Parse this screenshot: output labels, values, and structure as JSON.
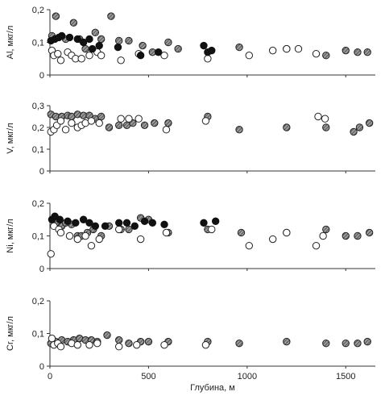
{
  "figure": {
    "x_axis_label": "Глубина, м",
    "x_ticks": [
      0,
      500,
      1000,
      1500
    ],
    "x_range": [
      0,
      1650
    ]
  },
  "legend_styles": {
    "filled": "#111111",
    "hatched": "#7a7a7a",
    "open": "#ffffff"
  },
  "chart_data": [
    {
      "type": "scatter",
      "ylabel": "Al, мкг/л",
      "ylim": [
        0,
        0.2
      ],
      "yticks": [
        0,
        0.1,
        0.2
      ],
      "y_tick_labels": [
        "0",
        "0,1",
        "0,2"
      ],
      "points": {
        "filled": [
          [
            5,
            0.105
          ],
          [
            25,
            0.11
          ],
          [
            45,
            0.115
          ],
          [
            60,
            0.12
          ],
          [
            100,
            0.115
          ],
          [
            140,
            0.11
          ],
          [
            170,
            0.1
          ],
          [
            200,
            0.11
          ],
          [
            215,
            0.08
          ],
          [
            250,
            0.09
          ],
          [
            345,
            0.085
          ],
          [
            460,
            0.06
          ],
          [
            550,
            0.07
          ],
          [
            780,
            0.09
          ],
          [
            800,
            0.07
          ],
          [
            820,
            0.075
          ]
        ],
        "hatched": [
          [
            10,
            0.12
          ],
          [
            30,
            0.18
          ],
          [
            80,
            0.11
          ],
          [
            120,
            0.16
          ],
          [
            150,
            0.11
          ],
          [
            180,
            0.08
          ],
          [
            230,
            0.13
          ],
          [
            260,
            0.11
          ],
          [
            310,
            0.18
          ],
          [
            350,
            0.105
          ],
          [
            400,
            0.105
          ],
          [
            470,
            0.09
          ],
          [
            520,
            0.07
          ],
          [
            600,
            0.1
          ],
          [
            650,
            0.08
          ],
          [
            960,
            0.085
          ],
          [
            1200,
            0.08
          ],
          [
            1400,
            0.06
          ],
          [
            1500,
            0.075
          ],
          [
            1560,
            0.07
          ],
          [
            1610,
            0.07
          ]
        ],
        "open": [
          [
            10,
            0.075
          ],
          [
            20,
            0.06
          ],
          [
            40,
            0.065
          ],
          [
            55,
            0.045
          ],
          [
            90,
            0.07
          ],
          [
            110,
            0.06
          ],
          [
            130,
            0.05
          ],
          [
            160,
            0.05
          ],
          [
            200,
            0.06
          ],
          [
            240,
            0.07
          ],
          [
            260,
            0.06
          ],
          [
            360,
            0.045
          ],
          [
            450,
            0.065
          ],
          [
            580,
            0.06
          ],
          [
            800,
            0.05
          ],
          [
            1010,
            0.06
          ],
          [
            1130,
            0.075
          ],
          [
            1200,
            0.08
          ],
          [
            1260,
            0.08
          ],
          [
            1350,
            0.065
          ]
        ]
      }
    },
    {
      "type": "scatter",
      "ylabel": "V, мкг/л",
      "ylim": [
        0,
        0.3
      ],
      "yticks": [
        0,
        0.1,
        0.2,
        0.3
      ],
      "y_tick_labels": [
        "0",
        "0,1",
        "0,2",
        "0,3"
      ],
      "points": {
        "filled": [],
        "hatched": [
          [
            5,
            0.26
          ],
          [
            30,
            0.25
          ],
          [
            60,
            0.25
          ],
          [
            90,
            0.255
          ],
          [
            110,
            0.25
          ],
          [
            140,
            0.26
          ],
          [
            170,
            0.255
          ],
          [
            200,
            0.255
          ],
          [
            230,
            0.24
          ],
          [
            260,
            0.25
          ],
          [
            300,
            0.2
          ],
          [
            350,
            0.21
          ],
          [
            390,
            0.21
          ],
          [
            420,
            0.22
          ],
          [
            480,
            0.21
          ],
          [
            530,
            0.22
          ],
          [
            600,
            0.22
          ],
          [
            800,
            0.25
          ],
          [
            960,
            0.19
          ],
          [
            1200,
            0.2
          ],
          [
            1400,
            0.2
          ],
          [
            1540,
            0.18
          ],
          [
            1570,
            0.2
          ],
          [
            1620,
            0.22
          ]
        ],
        "open": [
          [
            5,
            0.18
          ],
          [
            20,
            0.19
          ],
          [
            35,
            0.21
          ],
          [
            55,
            0.23
          ],
          [
            80,
            0.19
          ],
          [
            110,
            0.22
          ],
          [
            140,
            0.2
          ],
          [
            160,
            0.21
          ],
          [
            180,
            0.22
          ],
          [
            210,
            0.23
          ],
          [
            250,
            0.22
          ],
          [
            360,
            0.24
          ],
          [
            400,
            0.24
          ],
          [
            450,
            0.24
          ],
          [
            590,
            0.19
          ],
          [
            790,
            0.23
          ],
          [
            1360,
            0.25
          ],
          [
            1395,
            0.24
          ]
        ]
      }
    },
    {
      "type": "scatter",
      "ylabel": "Ni, мкг/л",
      "ylim": [
        0,
        0.2
      ],
      "yticks": [
        0,
        0.1,
        0.2
      ],
      "y_tick_labels": [
        "0",
        "0,1",
        "0,2"
      ],
      "points": {
        "filled": [
          [
            10,
            0.15
          ],
          [
            25,
            0.16
          ],
          [
            50,
            0.15
          ],
          [
            90,
            0.145
          ],
          [
            130,
            0.14
          ],
          [
            170,
            0.15
          ],
          [
            200,
            0.14
          ],
          [
            230,
            0.13
          ],
          [
            280,
            0.13
          ],
          [
            350,
            0.14
          ],
          [
            390,
            0.14
          ],
          [
            430,
            0.13
          ],
          [
            480,
            0.145
          ],
          [
            520,
            0.14
          ],
          [
            580,
            0.135
          ],
          [
            780,
            0.14
          ],
          [
            840,
            0.145
          ]
        ],
        "hatched": [
          [
            30,
            0.14
          ],
          [
            60,
            0.13
          ],
          [
            80,
            0.14
          ],
          [
            110,
            0.135
          ],
          [
            140,
            0.1
          ],
          [
            160,
            0.1
          ],
          [
            190,
            0.11
          ],
          [
            220,
            0.12
          ],
          [
            260,
            0.1
          ],
          [
            300,
            0.13
          ],
          [
            360,
            0.12
          ],
          [
            400,
            0.12
          ],
          [
            460,
            0.155
          ],
          [
            500,
            0.15
          ],
          [
            600,
            0.11
          ],
          [
            800,
            0.12
          ],
          [
            970,
            0.11
          ],
          [
            1200,
            0.11
          ],
          [
            1400,
            0.12
          ],
          [
            1500,
            0.1
          ],
          [
            1560,
            0.1
          ],
          [
            1620,
            0.11
          ]
        ],
        "open": [
          [
            5,
            0.045
          ],
          [
            20,
            0.13
          ],
          [
            45,
            0.12
          ],
          [
            55,
            0.11
          ],
          [
            100,
            0.1
          ],
          [
            140,
            0.09
          ],
          [
            180,
            0.1
          ],
          [
            210,
            0.07
          ],
          [
            250,
            0.09
          ],
          [
            350,
            0.12
          ],
          [
            460,
            0.09
          ],
          [
            590,
            0.11
          ],
          [
            820,
            0.12
          ],
          [
            1010,
            0.07
          ],
          [
            1130,
            0.09
          ],
          [
            1200,
            0.11
          ],
          [
            1350,
            0.07
          ],
          [
            1385,
            0.1
          ]
        ]
      }
    },
    {
      "type": "scatter",
      "ylabel": "Cr, мкг/л",
      "ylim": [
        0,
        0.2
      ],
      "yticks": [
        0,
        0.1,
        0.2
      ],
      "y_tick_labels": [
        "0",
        "0,1",
        "0,2"
      ],
      "points": {
        "filled": [],
        "hatched": [
          [
            5,
            0.07
          ],
          [
            30,
            0.075
          ],
          [
            60,
            0.08
          ],
          [
            90,
            0.075
          ],
          [
            120,
            0.08
          ],
          [
            150,
            0.085
          ],
          [
            180,
            0.08
          ],
          [
            210,
            0.08
          ],
          [
            240,
            0.075
          ],
          [
            290,
            0.095
          ],
          [
            350,
            0.08
          ],
          [
            400,
            0.07
          ],
          [
            460,
            0.075
          ],
          [
            500,
            0.075
          ],
          [
            600,
            0.075
          ],
          [
            800,
            0.075
          ],
          [
            960,
            0.07
          ],
          [
            1200,
            0.075
          ],
          [
            1400,
            0.07
          ],
          [
            1500,
            0.07
          ],
          [
            1560,
            0.07
          ],
          [
            1610,
            0.075
          ]
        ],
        "open": [
          [
            10,
            0.085
          ],
          [
            20,
            0.065
          ],
          [
            40,
            0.07
          ],
          [
            55,
            0.06
          ],
          [
            110,
            0.07
          ],
          [
            140,
            0.065
          ],
          [
            200,
            0.065
          ],
          [
            240,
            0.07
          ],
          [
            350,
            0.06
          ],
          [
            440,
            0.065
          ],
          [
            580,
            0.065
          ],
          [
            790,
            0.065
          ]
        ]
      }
    }
  ]
}
